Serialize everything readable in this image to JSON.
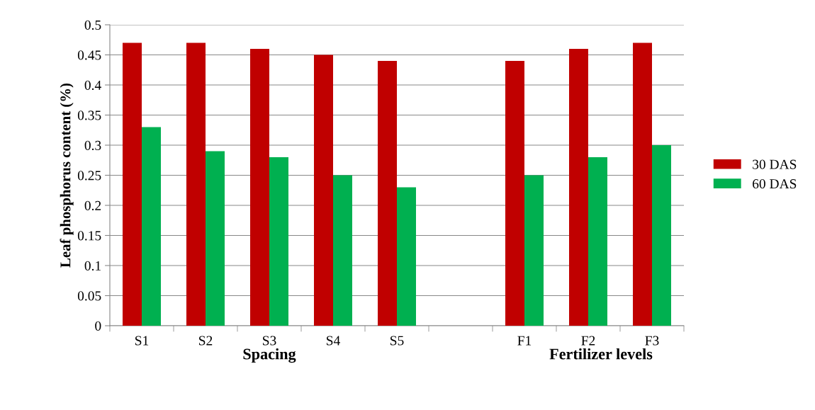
{
  "chart_data": {
    "type": "bar",
    "ylabel": "Leaf phosphorus content (%)",
    "categories": [
      "S1",
      "S2",
      "S3",
      "S4",
      "S5",
      null,
      "F1",
      "F2",
      "F3"
    ],
    "series": [
      {
        "name": "30 DAS",
        "color": "#c00000",
        "values": [
          0.47,
          0.47,
          0.46,
          0.45,
          0.44,
          null,
          0.44,
          0.46,
          0.47
        ]
      },
      {
        "name": "60 DAS",
        "color": "#00b050",
        "values": [
          0.33,
          0.29,
          0.28,
          0.25,
          0.23,
          null,
          0.25,
          0.28,
          0.3
        ]
      }
    ],
    "annotations": [
      "Spacing",
      "Fertilizer levels"
    ],
    "ylim": [
      0,
      0.5
    ],
    "yticks": [
      0,
      0.05,
      0.1,
      0.15,
      0.2,
      0.25,
      0.3,
      0.35,
      0.4,
      0.45,
      0.5
    ],
    "grid": "y",
    "legend": "right"
  }
}
